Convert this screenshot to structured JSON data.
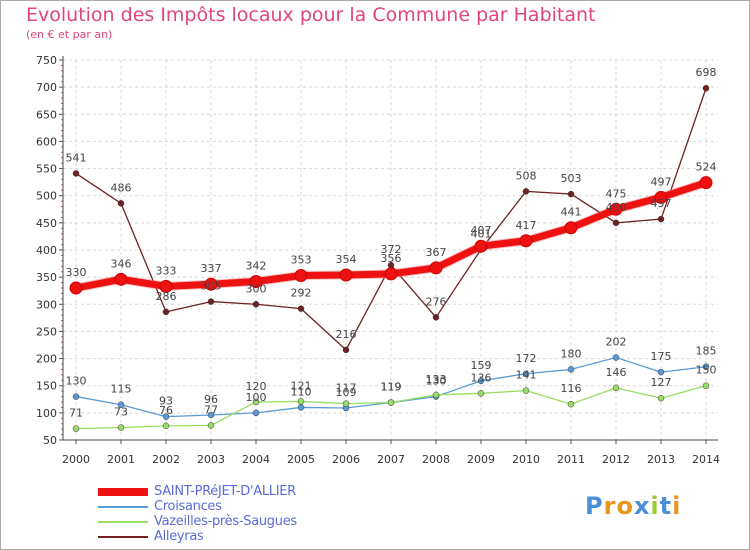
{
  "header": {
    "title": "Evolution des Impôts locaux pour la Commune par Habitant",
    "subtitle": "(en € et par an)"
  },
  "brand": {
    "logo_letters": [
      "P",
      "r",
      "o",
      "x",
      "i",
      "t",
      "i"
    ],
    "logo_colors": [
      "#4a90d9",
      "#e8961e",
      "#e8961e",
      "#4a90d9",
      "#a0c83c",
      "#4a90d9",
      "#e8961e"
    ]
  },
  "chart_data": {
    "type": "line",
    "x": [
      "2000",
      "2001",
      "2002",
      "2003",
      "2004",
      "2005",
      "2006",
      "2007",
      "2008",
      "2009",
      "2010",
      "2011",
      "2012",
      "2013",
      "2014"
    ],
    "ylim": [
      50,
      750
    ],
    "yticks": [
      50,
      100,
      150,
      200,
      250,
      300,
      350,
      400,
      450,
      500,
      550,
      600,
      650,
      700,
      750
    ],
    "grid": true,
    "legend_position": "bottom-left",
    "series": [
      {
        "name": "SAINT-PRéJET-D'ALLIER",
        "color": "#ee1111",
        "values": [
          330,
          346,
          333,
          337,
          342,
          353,
          354,
          356,
          367,
          407,
          417,
          441,
          475,
          497,
          524
        ]
      },
      {
        "name": "Croisances",
        "color": "#5b9bd5",
        "values": [
          130,
          115,
          93,
          96,
          100,
          110,
          109,
          119,
          130,
          159,
          172,
          180,
          202,
          175,
          185
        ]
      },
      {
        "name": "Vazeilles-près-Saugues",
        "color": "#99dd66",
        "values": [
          71,
          73,
          76,
          77,
          120,
          121,
          117,
          119,
          133,
          136,
          141,
          116,
          146,
          127,
          150
        ]
      },
      {
        "name": "Alleyras",
        "color": "#6e2222",
        "values": [
          541,
          486,
          286,
          305,
          300,
          292,
          216,
          372,
          276,
          401,
          508,
          503,
          450,
          457,
          698
        ]
      }
    ]
  }
}
